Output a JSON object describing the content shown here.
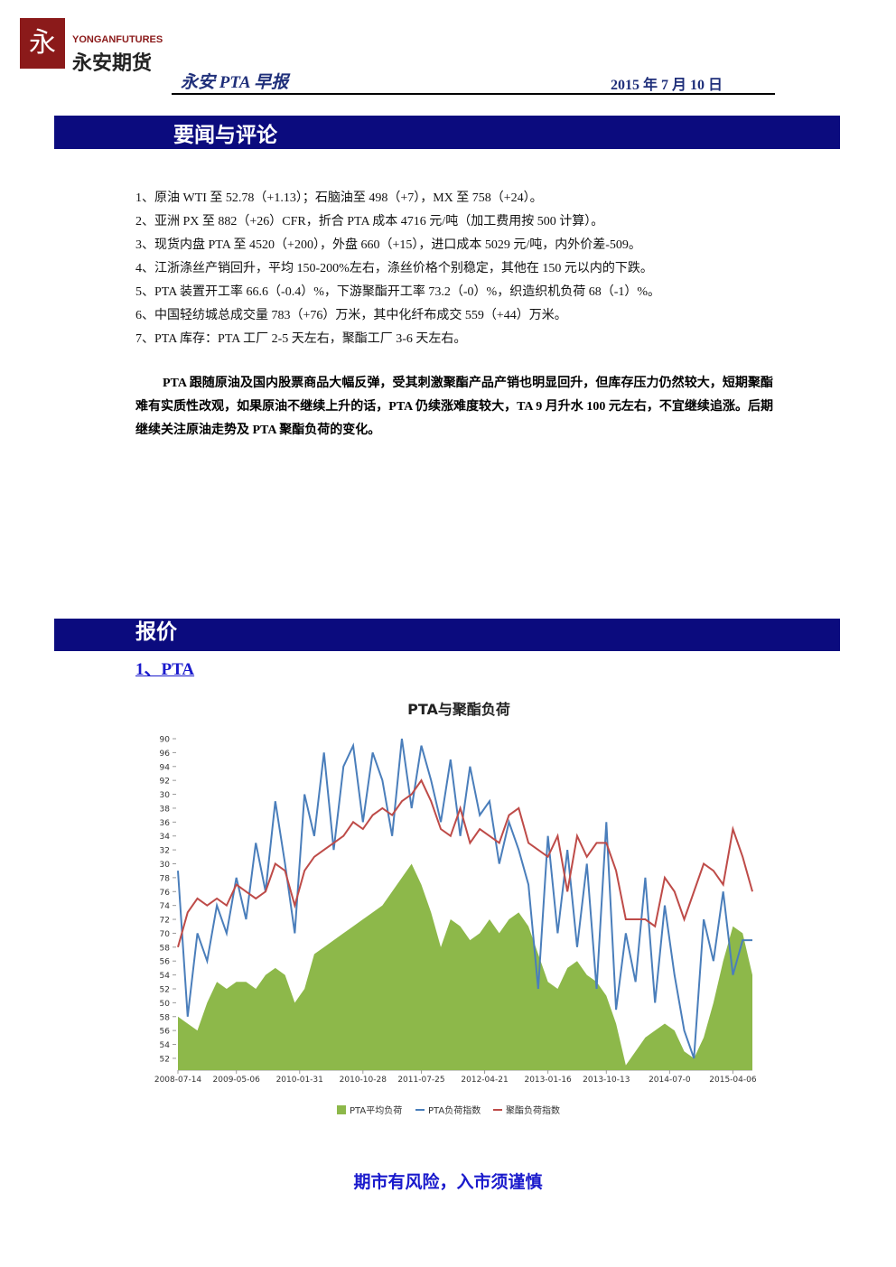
{
  "header": {
    "brand_en": "YONGANFUTURES",
    "brand_cn": "永安期货",
    "report_title": "永安 PTA 早报",
    "date": "2015 年 7 月 10 日"
  },
  "sections": [
    {
      "title": "要闻与评论"
    },
    {
      "title": "报价"
    }
  ],
  "news": [
    "1、原油 WTI 至 52.78（+1.13）；石脑油至 498（+7），MX 至 758（+24）。",
    "2、亚洲 PX 至 882（+26）CFR，折合 PTA 成本 4716 元/吨（加工费用按 500 计算）。",
    "3、现货内盘 PTA 至 4520（+200），外盘 660（+15），进口成本 5029 元/吨，内外价差-509。",
    "4、江浙涤丝产销回升，平均 150-200%左右，涤丝价格个别稳定，其他在 150 元以内的下跌。",
    "5、PTA 装置开工率 66.6（-0.4）%，下游聚酯开工率 73.2（-0）%，织造织机负荷 68（-1）%。",
    "6、中国轻纺城总成交量 783（+76）万米，其中化纤布成交 559（+44）万米。",
    "7、PTA  库存：PTA 工厂 2-5 天左右，聚酯工厂 3-6 天左右。"
  ],
  "commentary": "PTA 跟随原油及国内股票商品大幅反弹，受其刺激聚酯产品产销也明显回升，但库存压力仍然较大，短期聚酯难有实质性改观，如果原油不继续上升的话，PTA 仍续涨难度较大，TA 9 月升水 100 元左右，不宜继续追涨。后期继续关注原油走势及 PTA 聚酯负荷的变化。",
  "subsection": "1、PTA",
  "footer": "期市有风险，入市须谨慎",
  "chart_data": {
    "type": "area-line",
    "title": "PTA与聚酯负荷",
    "x": [
      0,
      1,
      2,
      3,
      4,
      5,
      6,
      7,
      8,
      9,
      10,
      11,
      12,
      13,
      14,
      15,
      16,
      17,
      18,
      19,
      20,
      21,
      22,
      23,
      24,
      25,
      26,
      27,
      28,
      29,
      30,
      31,
      32,
      33,
      34,
      35,
      36,
      37,
      38,
      39,
      40,
      41,
      42,
      43,
      44,
      45,
      46,
      47,
      48,
      49,
      50,
      51,
      52,
      53,
      54,
      55,
      56,
      57,
      58,
      59
    ],
    "xlim": [
      0,
      59
    ],
    "xticks": [
      {
        "value": 0,
        "label": "2008-07-14"
      },
      {
        "value": 6,
        "label": "2009-05-06"
      },
      {
        "value": 12.5,
        "label": "2010-01-31"
      },
      {
        "value": 19,
        "label": "2010-10-28"
      },
      {
        "value": 25,
        "label": "2011-07-25"
      },
      {
        "value": 31.5,
        "label": "2012-04-21"
      },
      {
        "value": 38,
        "label": "2013-01-16"
      },
      {
        "value": 44,
        "label": "2013-10-13"
      },
      {
        "value": 50.5,
        "label": "2014-07-0"
      },
      {
        "value": 57,
        "label": "2015-04-06"
      }
    ],
    "ylim": [
      50.3,
      99.3
    ],
    "yticks": [
      {
        "value": 98,
        "label": "90"
      },
      96,
      94,
      92,
      {
        "value": 90,
        "label": "30"
      },
      {
        "value": 88,
        "label": "38"
      },
      {
        "value": 86,
        "label": "36"
      },
      {
        "value": 84,
        "label": "34"
      },
      {
        "value": 82,
        "label": "32"
      },
      {
        "value": 80,
        "label": "30"
      },
      78,
      76,
      74,
      72,
      70,
      {
        "value": 68,
        "label": "58"
      },
      {
        "value": 66,
        "label": "56"
      },
      {
        "value": 64,
        "label": "54"
      },
      {
        "value": 62,
        "label": "52"
      },
      {
        "value": 60,
        "label": "50"
      },
      58,
      56,
      54,
      52
    ],
    "series": [
      {
        "name": "PTA平均负荷",
        "color": "#8db84a",
        "kind": "area",
        "values": [
          58,
          57,
          56,
          60,
          63,
          62,
          63,
          63,
          62,
          64,
          65,
          64,
          60,
          62,
          67,
          68,
          69,
          70,
          71,
          72,
          73,
          74,
          76,
          78,
          80,
          77,
          73,
          68,
          72,
          71,
          69,
          70,
          72,
          70,
          72,
          73,
          71,
          67,
          63,
          62,
          65,
          66,
          64,
          63,
          61,
          57,
          51,
          53,
          55,
          56,
          57,
          56,
          53,
          52,
          55,
          60,
          66,
          71,
          70,
          64
        ]
      },
      {
        "name": "PTA负荷指数",
        "color": "#4a7ebb",
        "kind": "line",
        "values": [
          79,
          58,
          70,
          66,
          74,
          70,
          78,
          72,
          83,
          76,
          89,
          80,
          70,
          90,
          84,
          96,
          82,
          94,
          97,
          86,
          96,
          92,
          84,
          98,
          88,
          97,
          92,
          86,
          95,
          84,
          94,
          87,
          89,
          80,
          86,
          82,
          77,
          62,
          84,
          70,
          82,
          68,
          80,
          62,
          86,
          59,
          70,
          63,
          78,
          60,
          74,
          64,
          56,
          52,
          72,
          66,
          76,
          64,
          69,
          69
        ]
      },
      {
        "name": "聚酯负荷指数",
        "color": "#be4b48",
        "kind": "line",
        "values": [
          68,
          73,
          75,
          74,
          75,
          74,
          77,
          76,
          75,
          76,
          80,
          79,
          74,
          79,
          81,
          82,
          83,
          84,
          86,
          85,
          87,
          88,
          87,
          89,
          90,
          92,
          89,
          85,
          84,
          88,
          83,
          85,
          84,
          83,
          87,
          88,
          83,
          82,
          81,
          84,
          76,
          84,
          81,
          83,
          83,
          79,
          72,
          72,
          72,
          71,
          78,
          76,
          72,
          76,
          80,
          79,
          77,
          85,
          81,
          76
        ]
      }
    ]
  }
}
